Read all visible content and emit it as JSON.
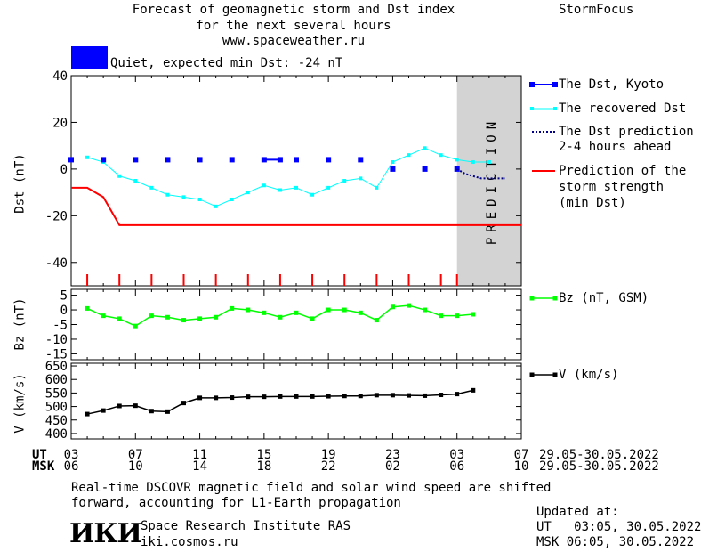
{
  "header": {
    "title_line1": "Forecast of geomagnetic storm and Dst index",
    "title_line2": "for the next several hours",
    "title_line3": "www.spaceweather.ru",
    "brand": "StormFocus"
  },
  "status": {
    "label": "Quiet, expected min Dst: -24 nT",
    "color": "#0000ff"
  },
  "prediction_label": "PREDICTION",
  "legend": {
    "dst_kyoto": "The Dst, Kyoto",
    "recovered": "The recovered Dst",
    "prediction_1": "The Dst prediction",
    "prediction_2": "2-4 hours ahead",
    "storm_1": "Prediction of the",
    "storm_2": "storm strength",
    "storm_3": "(min Dst)",
    "bz": "Bz (nT, GSM)",
    "v": "V (km/s)"
  },
  "axes": {
    "dst_ylabel": "Dst (nT)",
    "bz_ylabel": "Bz (nT)",
    "v_ylabel": "V (km/s)",
    "ut_label": "UT",
    "msk_label": "MSK",
    "ut_ticks": [
      "03",
      "07",
      "11",
      "15",
      "19",
      "23",
      "03",
      "07"
    ],
    "msk_ticks": [
      "06",
      "10",
      "14",
      "18",
      "22",
      "02",
      "06",
      "10"
    ],
    "date_range_ut": "29.05-30.05.2022",
    "date_range_msk": "29.05-30.05.2022"
  },
  "footer": {
    "note_line1": "Real-time DSCOVR magnetic field and solar wind speed are shifted",
    "note_line2": "forward, accounting for L1-Earth propagation",
    "institute": "Space Research Institute RAS",
    "site": "iki.cosmos.ru",
    "logo": "ИКИ",
    "updated_label": "Updated at:",
    "updated_ut": "UT   03:05, 30.05.2022",
    "updated_msk": "MSK 06:05, 30.05.2022"
  },
  "chart_data": [
    {
      "type": "line",
      "x_unit": "hours since 03 UT 29.05",
      "xlim": [
        0,
        28
      ],
      "ylim": [
        -50,
        40
      ],
      "yticks": [
        40,
        20,
        0,
        -20,
        -40
      ],
      "series": [
        {
          "name": "The Dst, Kyoto",
          "color": "#0000ff",
          "x": [
            0,
            2,
            4,
            6,
            8,
            10,
            12,
            14,
            16,
            18,
            20,
            22,
            24
          ],
          "y": [
            4,
            4,
            4,
            4,
            4,
            4,
            4,
            4,
            4,
            4,
            0,
            0,
            0
          ]
        },
        {
          "name": "The recovered Dst",
          "color": "#00ffff",
          "x": [
            1,
            2,
            3,
            4,
            5,
            6,
            7,
            8,
            9,
            10,
            11,
            12,
            13,
            14,
            15,
            16,
            17,
            18,
            19,
            20,
            21,
            22,
            23,
            24,
            25,
            26
          ],
          "y": [
            5,
            3,
            -3,
            -5,
            -8,
            -11,
            -12,
            -13,
            -16,
            -13,
            -10,
            -7,
            -9,
            -8,
            -11,
            -8,
            -5,
            -4,
            -8,
            3,
            6,
            9,
            6,
            4,
            3,
            3
          ]
        },
        {
          "name": "The Dst prediction 2-4 hours ahead",
          "color": "#00008b",
          "x": [
            24,
            24.5,
            25,
            25.5,
            26,
            26.5,
            27
          ],
          "y": [
            0,
            -2,
            -3,
            -4,
            -4,
            -4,
            -4
          ]
        },
        {
          "name": "Prediction of the storm strength (min Dst)",
          "color": "#ff0000",
          "x": [
            0,
            1,
            2,
            3,
            28
          ],
          "y": [
            -8,
            -8,
            -12,
            -24,
            -24
          ]
        }
      ],
      "prediction_region_x": [
        24,
        28
      ],
      "storm_ticks_x": [
        1,
        3,
        5,
        7,
        9,
        11,
        13,
        15,
        17,
        19,
        21,
        23,
        24
      ]
    },
    {
      "type": "line",
      "xlim": [
        0,
        28
      ],
      "ylim": [
        -17,
        7
      ],
      "yticks": [
        5,
        0,
        -5,
        -10,
        -15
      ],
      "series": [
        {
          "name": "Bz (nT, GSM)",
          "color": "#00ff00",
          "x": [
            1,
            2,
            3,
            4,
            5,
            6,
            7,
            8,
            9,
            10,
            11,
            12,
            13,
            14,
            15,
            16,
            17,
            18,
            19,
            20,
            21,
            22,
            23,
            24,
            25
          ],
          "y": [
            0.5,
            -2,
            -3,
            -5.5,
            -2,
            -2.5,
            -3.5,
            -3,
            -2.5,
            0.5,
            0,
            -1,
            -2.5,
            -1,
            -3,
            0,
            0,
            -1,
            -3.5,
            1,
            1.5,
            0,
            -2,
            -2,
            -1.5
          ]
        }
      ]
    },
    {
      "type": "line",
      "xlim": [
        0,
        28
      ],
      "ylim": [
        380,
        660
      ],
      "yticks": [
        650,
        600,
        550,
        500,
        450,
        400
      ],
      "series": [
        {
          "name": "V (km/s)",
          "color": "#000000",
          "x": [
            1,
            2,
            3,
            4,
            5,
            6,
            7,
            8,
            9,
            10,
            11,
            12,
            13,
            14,
            15,
            16,
            17,
            18,
            19,
            20,
            21,
            22,
            23,
            24,
            25
          ],
          "y": [
            472,
            485,
            502,
            503,
            483,
            481,
            513,
            532,
            532,
            533,
            536,
            536,
            537,
            537,
            537,
            538,
            539,
            539,
            542,
            542,
            541,
            540,
            543,
            546,
            560
          ]
        }
      ]
    }
  ]
}
